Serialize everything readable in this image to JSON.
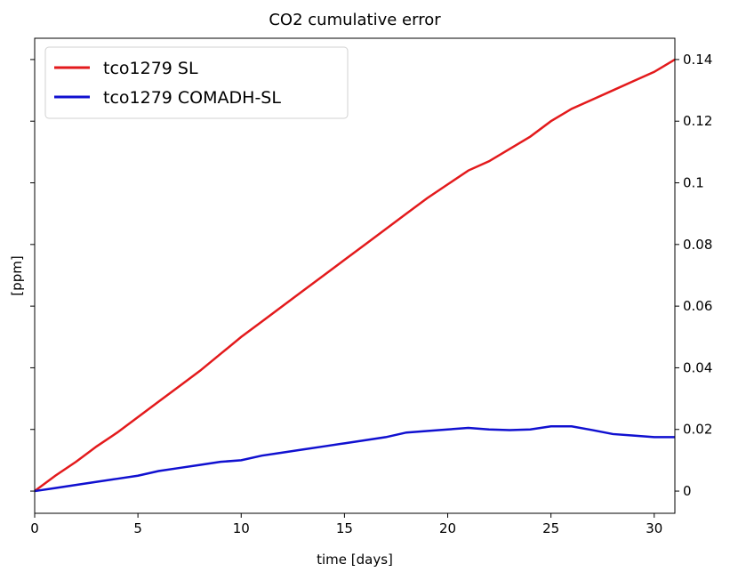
{
  "chart_data": {
    "type": "line",
    "title": "CO2 cumulative error",
    "x_label": "time [days]",
    "y_label": "[ppm]",
    "x": [
      0,
      1,
      2,
      3,
      4,
      5,
      6,
      7,
      8,
      9,
      10,
      11,
      12,
      13,
      14,
      15,
      16,
      17,
      18,
      19,
      20,
      21,
      22,
      23,
      24,
      25,
      26,
      27,
      28,
      29,
      30,
      31
    ],
    "series": [
      {
        "name": "tco1279 SL",
        "color": "#e31a1c",
        "values": [
          0,
          0.005,
          0.0095,
          0.0145,
          0.019,
          0.024,
          0.029,
          0.034,
          0.039,
          0.0445,
          0.05,
          0.055,
          0.06,
          0.065,
          0.07,
          0.075,
          0.08,
          0.085,
          0.09,
          0.095,
          0.0995,
          0.104,
          0.107,
          0.111,
          0.115,
          0.12,
          0.124,
          0.127,
          0.13,
          0.133,
          0.136,
          0.14
        ]
      },
      {
        "name": "tco1279 COMADH-SL",
        "color": "#1010d0",
        "values": [
          0,
          0.001,
          0.002,
          0.003,
          0.004,
          0.005,
          0.0065,
          0.0075,
          0.0085,
          0.0095,
          0.01,
          0.0115,
          0.0125,
          0.0135,
          0.0145,
          0.0155,
          0.0165,
          0.0175,
          0.019,
          0.0195,
          0.02,
          0.0205,
          0.02,
          0.0198,
          0.02,
          0.021,
          0.021,
          0.0198,
          0.0185,
          0.018,
          0.0175,
          0.0175
        ]
      }
    ],
    "xlim": [
      0,
      31
    ],
    "xticks": [
      0,
      5,
      10,
      15,
      20,
      25,
      30
    ],
    "ylim": [
      -0.0072,
      0.1469
    ],
    "yticks": [
      0,
      0.02,
      0.04,
      0.06,
      0.08,
      0.1,
      0.12,
      0.14
    ],
    "y_axis_side": "right",
    "legend": "upper-left"
  }
}
